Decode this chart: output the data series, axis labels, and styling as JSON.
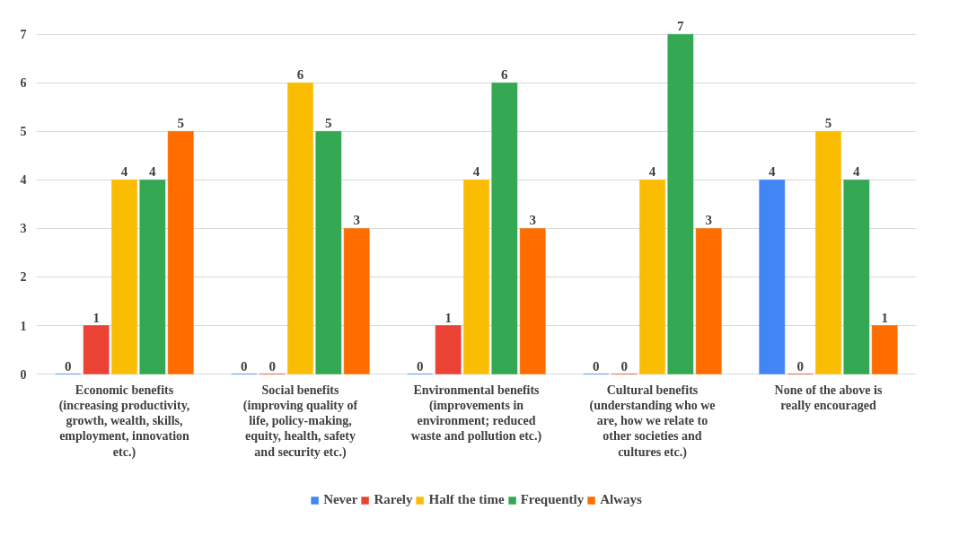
{
  "chart_data": {
    "type": "bar",
    "categories": [
      "Economic benefits\n(increasing productivity,\ngrowth, wealth, skills,\nemployment, innovation\netc.)",
      "Social benefits\n(improving quality of\nlife, policy-making,\nequity, health, safety\nand security etc.)",
      "Environmental benefits\n(improvements in\nenvironment; reduced\nwaste and pollution etc.)",
      "Cultural benefits\n(understanding who we\nare, how we relate to\nother societies and\ncultures etc.)",
      "None of the above is\nreally encouraged"
    ],
    "series": [
      {
        "name": "Never",
        "color": "#4285f4",
        "values": [
          0,
          0,
          0,
          0,
          4
        ]
      },
      {
        "name": "Rarely",
        "color": "#ea4335",
        "values": [
          1,
          0,
          1,
          0,
          0
        ]
      },
      {
        "name": "Half the time",
        "color": "#fbbc04",
        "values": [
          4,
          6,
          4,
          4,
          5
        ]
      },
      {
        "name": "Frequently",
        "color": "#34a853",
        "values": [
          4,
          5,
          6,
          7,
          4
        ]
      },
      {
        "name": "Always",
        "color": "#ff6d01",
        "values": [
          5,
          3,
          3,
          3,
          1
        ]
      }
    ],
    "ylim": [
      0,
      7
    ],
    "yticks": [
      0,
      1,
      2,
      3,
      4,
      5,
      6,
      7
    ],
    "grid": "y",
    "legend": "bottom",
    "data_labels": true
  }
}
